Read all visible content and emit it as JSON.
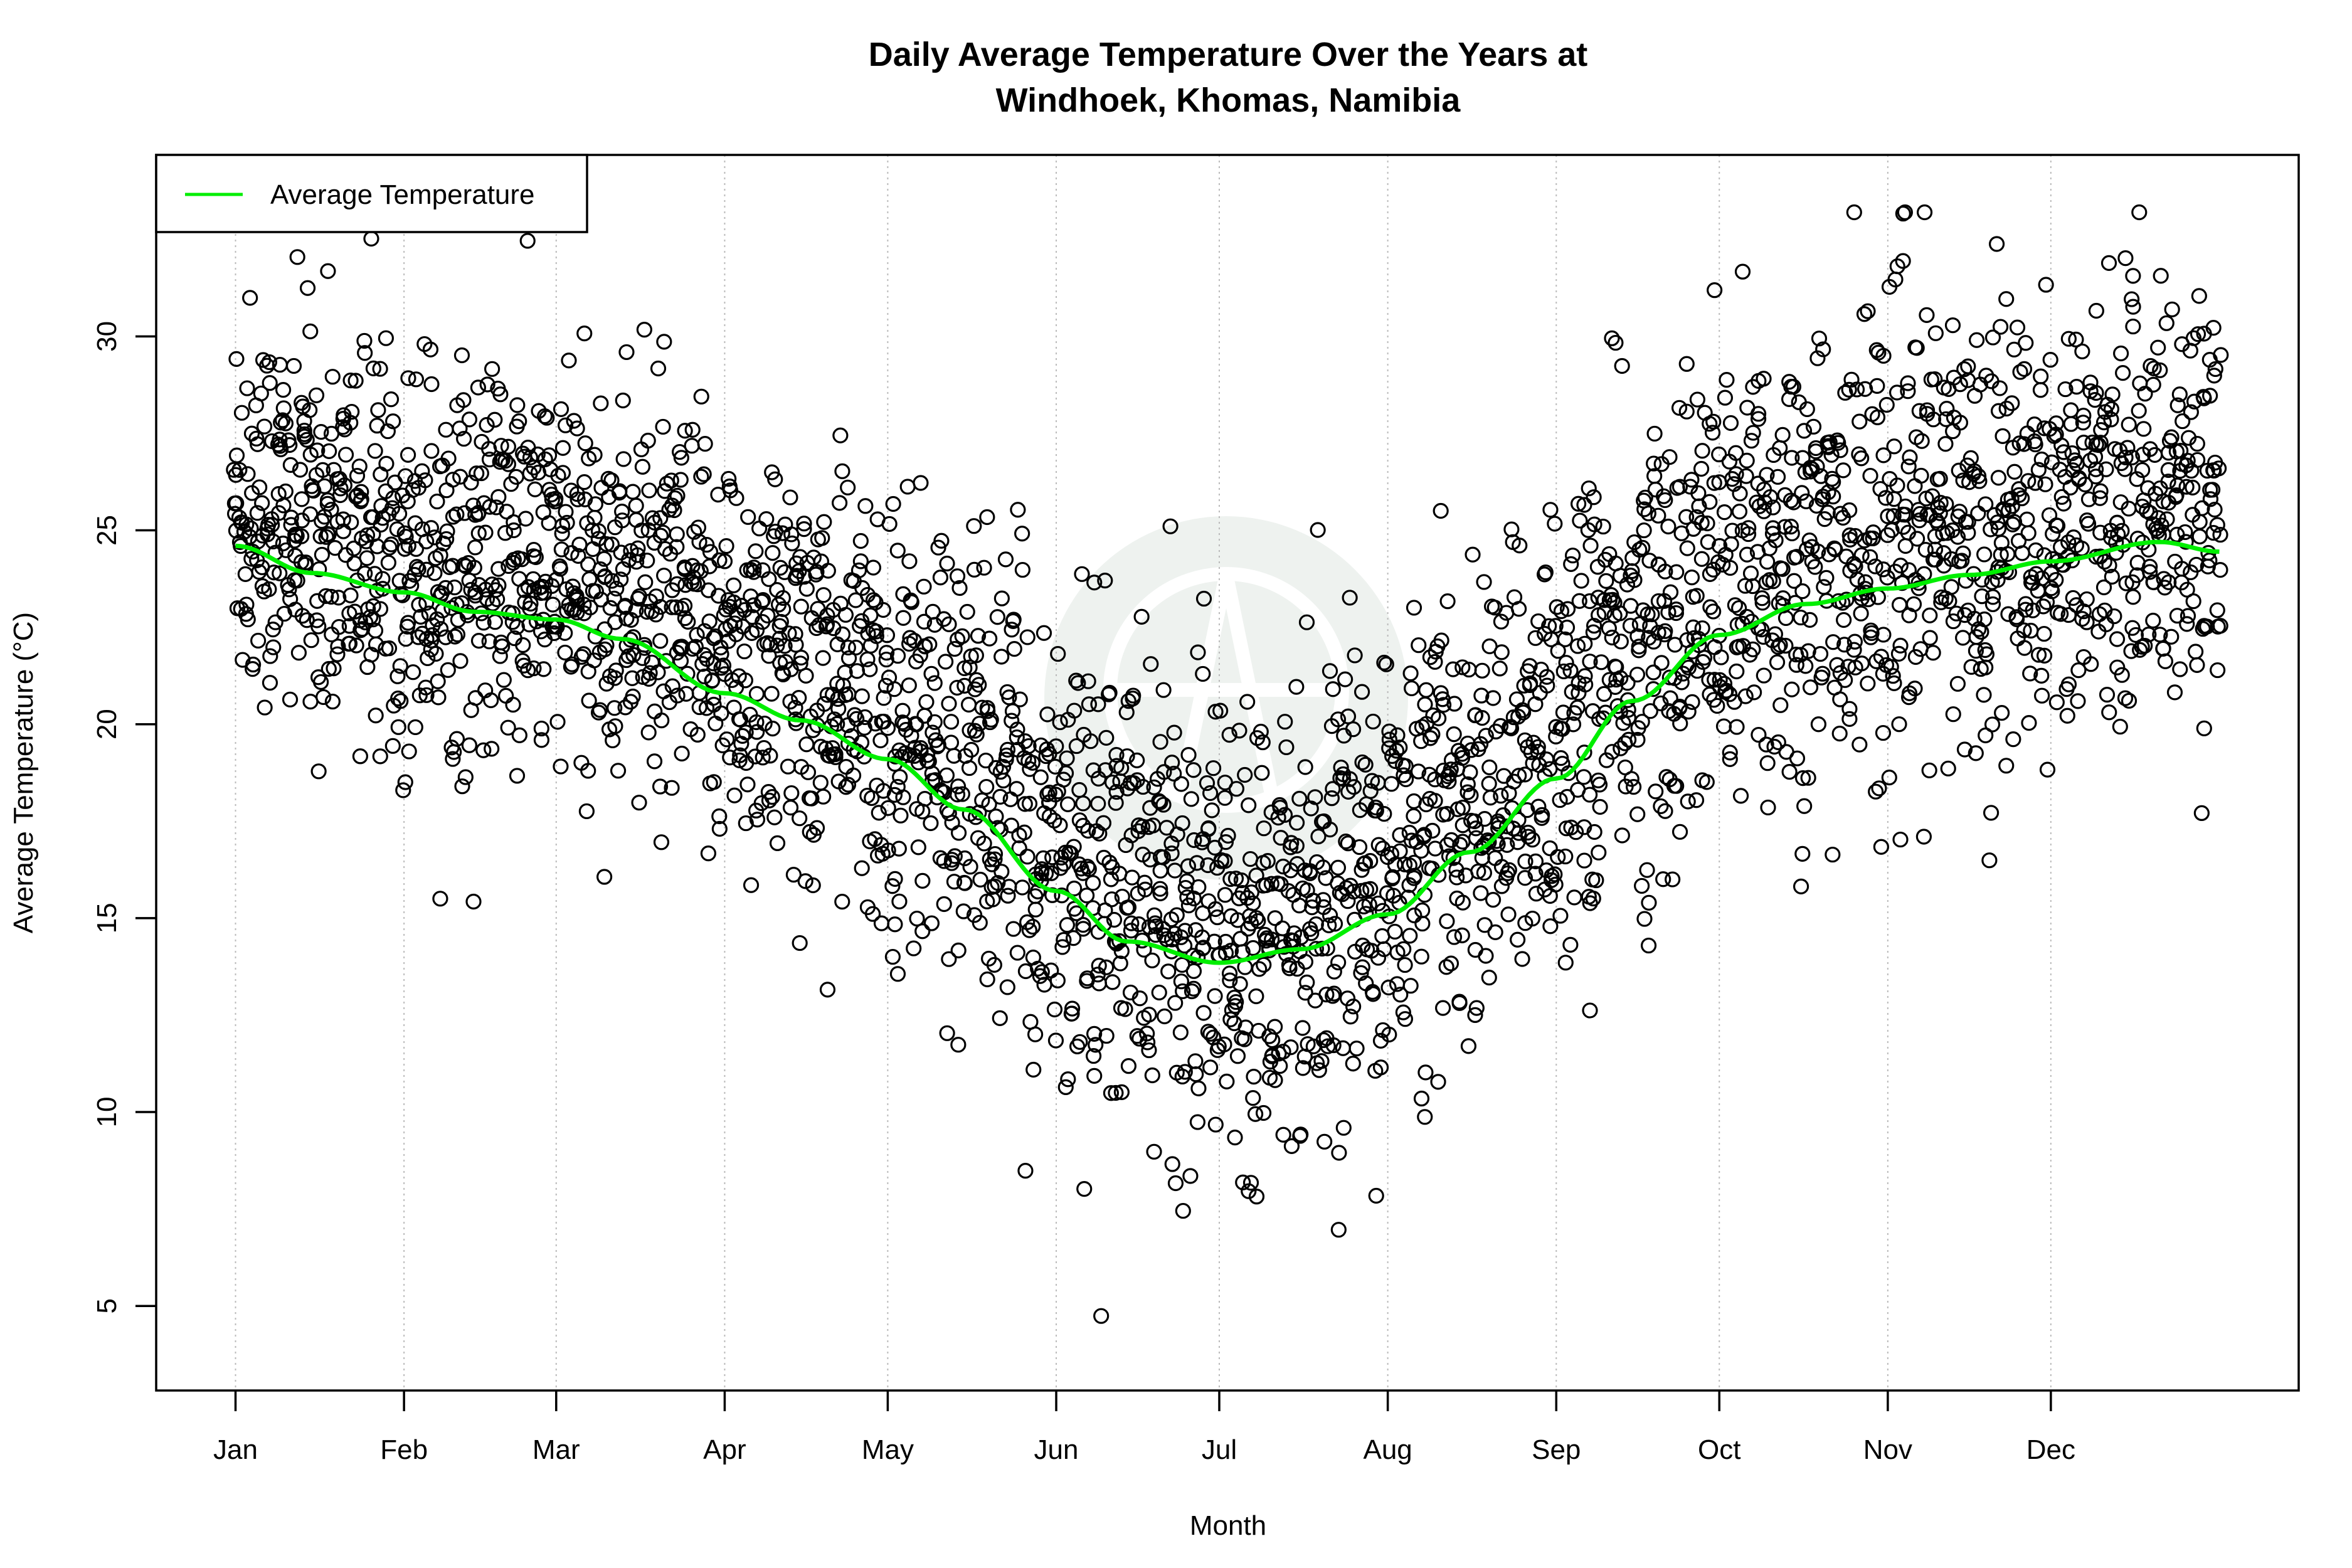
{
  "chart_data": {
    "type": "scatter",
    "title": "Daily Average Temperature Over the Years at",
    "subtitle": "Windhoek, Khomas, Namibia",
    "xlabel": "Month",
    "ylabel": "Average Temperature (°C)",
    "x_unit": "day of year",
    "xlim": [
      -13.6,
      380.6
    ],
    "ylim": [
      2.82,
      34.68
    ],
    "x_ticks": [
      {
        "label": "Jan",
        "day": 1
      },
      {
        "label": "Feb",
        "day": 32
      },
      {
        "label": "Mar",
        "day": 60
      },
      {
        "label": "Apr",
        "day": 91
      },
      {
        "label": "May",
        "day": 121
      },
      {
        "label": "Jun",
        "day": 152
      },
      {
        "label": "Jul",
        "day": 182
      },
      {
        "label": "Aug",
        "day": 213
      },
      {
        "label": "Sep",
        "day": 244
      },
      {
        "label": "Oct",
        "day": 274
      },
      {
        "label": "Nov",
        "day": 305
      },
      {
        "label": "Dec",
        "day": 335
      }
    ],
    "y_ticks": [
      5,
      10,
      15,
      20,
      25,
      30
    ],
    "grid": "vertical dotted at month ticks",
    "legend": {
      "placement": "top-left",
      "entries": [
        {
          "label": "Average Temperature",
          "color": "#00ee00"
        }
      ]
    },
    "scatter": {
      "marker": "open circle",
      "color": "#000000",
      "observed_range": [
        4.0,
        33.2
      ],
      "approx_spread_sd_by_month": [
        2.6,
        2.6,
        2.6,
        2.8,
        3.0,
        3.0,
        2.8,
        2.8,
        3.0,
        3.2,
        2.9,
        2.6
      ]
    },
    "series": [
      {
        "name": "Average Temperature",
        "type": "line",
        "color": "#00ee00",
        "x": [
          1,
          15,
          32,
          45,
          60,
          72,
          91,
          105,
          121,
          135,
          152,
          165,
          182,
          197,
          213,
          228,
          244,
          258,
          274,
          290,
          305,
          320,
          335,
          355,
          366
        ],
        "y": [
          24.6,
          23.9,
          23.4,
          22.9,
          22.7,
          22.2,
          20.8,
          20.1,
          19.1,
          17.8,
          15.7,
          14.4,
          13.85,
          14.2,
          15.1,
          16.7,
          18.6,
          20.6,
          22.3,
          23.1,
          23.5,
          23.85,
          24.2,
          24.7,
          24.45
        ]
      }
    ]
  },
  "colors": {
    "line": "#00ee00",
    "points": "#000000",
    "grid": "#bbbbbb",
    "watermark": "#eef2ef"
  },
  "watermark_icon": "globe-logo"
}
